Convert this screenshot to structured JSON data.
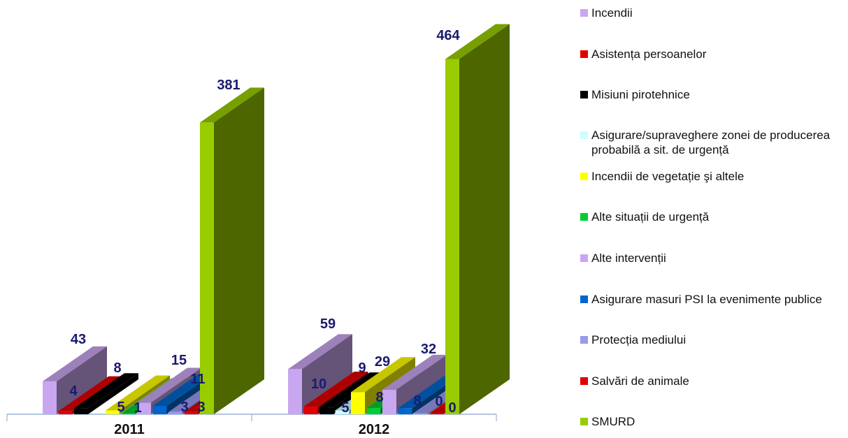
{
  "chart_data": {
    "type": "bar",
    "categories": [
      "2011",
      "2012"
    ],
    "series": [
      {
        "name": "Incendii",
        "color": "#c9a6f0",
        "values": [
          43,
          59
        ]
      },
      {
        "name": "Asistența persoanelor",
        "color": "#e00000",
        "values": [
          4,
          10
        ]
      },
      {
        "name": "Misiuni pirotehnice",
        "color": "#000000",
        "values": [
          8,
          9
        ]
      },
      {
        "name": "Asigurare/supraveghere zonei de producerea probabilă a sit. de urgență",
        "color": "#ccffff",
        "values": [
          null,
          5
        ]
      },
      {
        "name": "Incendii de vegetație şi altele",
        "color": "#ffff00",
        "values": [
          5,
          29
        ]
      },
      {
        "name": "Alte situații de urgență",
        "color": "#00cc33",
        "values": [
          1,
          8
        ]
      },
      {
        "name": "Alte intervenții",
        "color": "#c9a6f0",
        "values": [
          15,
          32
        ]
      },
      {
        "name": "Asigurare masuri PSI la evenimente publice",
        "color": "#0066cc",
        "values": [
          11,
          8
        ]
      },
      {
        "name": "Protecția mediului",
        "color": "#9999ee",
        "values": [
          3,
          0
        ]
      },
      {
        "name": "Salvări de animale",
        "color": "#e00000",
        "values": [
          3,
          0
        ]
      },
      {
        "name": "SMURD",
        "color": "#99cc00",
        "values": [
          381,
          464
        ]
      }
    ],
    "data_labels": [
      [
        "43",
        "4",
        "8",
        "",
        "5",
        "1",
        "15",
        "11",
        "3",
        "3",
        "381"
      ],
      [
        "59",
        "10",
        "9",
        "5",
        "29",
        "8",
        "32",
        "8",
        "0",
        "0",
        "464"
      ]
    ],
    "ylim": [
      0,
      464
    ],
    "legend_position": "right",
    "grid": false
  }
}
